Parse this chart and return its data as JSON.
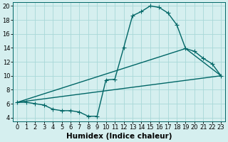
{
  "title": "",
  "xlabel": "Humidex (Indice chaleur)",
  "bg_color": "#d5efef",
  "line_color": "#006666",
  "grid_color": "#a8d8d8",
  "spine_color": "#006666",
  "xlim": [
    -0.5,
    23.5
  ],
  "ylim": [
    3.5,
    20.5
  ],
  "xticks": [
    0,
    1,
    2,
    3,
    4,
    5,
    6,
    7,
    8,
    9,
    10,
    11,
    12,
    13,
    14,
    15,
    16,
    17,
    18,
    19,
    20,
    21,
    22,
    23
  ],
  "yticks": [
    4,
    6,
    8,
    10,
    12,
    14,
    16,
    18,
    20
  ],
  "line1_x": [
    0,
    1,
    2,
    3,
    4,
    5,
    6,
    7,
    8,
    9,
    10,
    11,
    12,
    13,
    14,
    15,
    16,
    17,
    18,
    19,
    20,
    21,
    22,
    23
  ],
  "line1_y": [
    6.2,
    6.2,
    6.0,
    5.8,
    5.2,
    5.0,
    5.0,
    4.8,
    4.2,
    4.2,
    9.4,
    9.5,
    14.0,
    18.6,
    19.2,
    20.0,
    19.8,
    19.0,
    17.3,
    13.9,
    13.5,
    12.5,
    11.7,
    10.0
  ],
  "line2_x": [
    0,
    23
  ],
  "line2_y": [
    6.2,
    10.0
  ],
  "line3_x": [
    0,
    19,
    23
  ],
  "line3_y": [
    6.2,
    13.9,
    10.0
  ],
  "marker": "+",
  "marker_size": 4,
  "marker_lw": 0.8,
  "linewidth": 1.0,
  "xlabel_fontsize": 7.5,
  "xlabel_fontweight": "bold",
  "tick_fontsize": 6.0
}
